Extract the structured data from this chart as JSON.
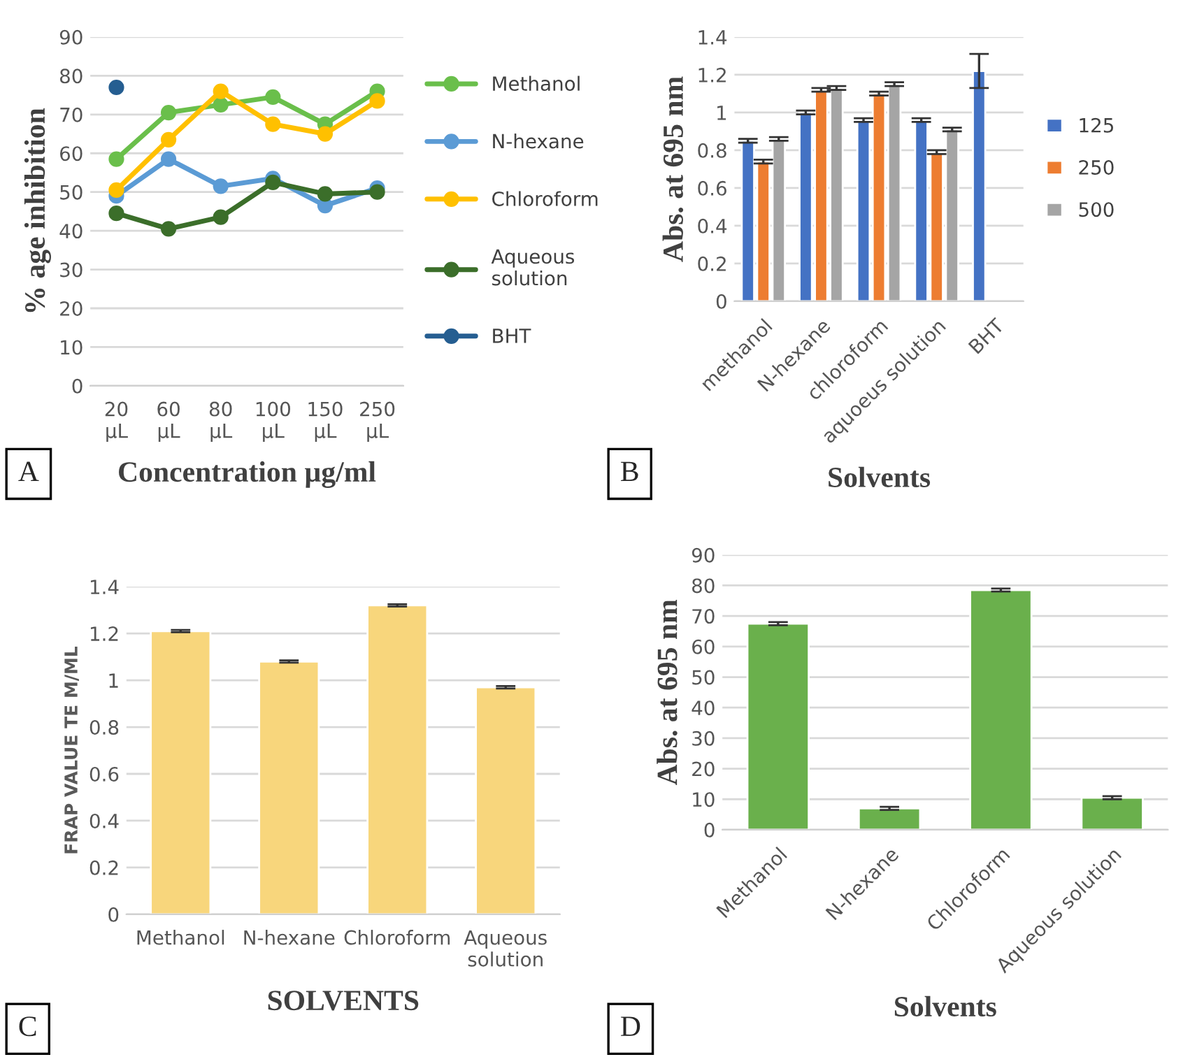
{
  "chart_data": [
    {
      "type": "line",
      "xlabel": "Concentration µg/ml",
      "ylabel": "% age inhibition",
      "categories": [
        "20 µL",
        "60 µL",
        "80 µL",
        "100 µL",
        "150 µL",
        "250 µL"
      ],
      "series": [
        {
          "name": "Methanol",
          "color": "#6abf4b",
          "values": [
            58.5,
            70.5,
            72.5,
            74.5,
            67.5,
            76
          ]
        },
        {
          "name": "N-hexane",
          "color": "#5b9bd5",
          "values": [
            49,
            58.5,
            51.5,
            53.5,
            46.5,
            51
          ]
        },
        {
          "name": "Chloroform",
          "color": "#ffc000",
          "values": [
            50.5,
            63.5,
            76,
            67.5,
            65,
            73.5
          ]
        },
        {
          "name": "Aqueous solution",
          "color": "#3b6e2a",
          "values": [
            44.5,
            40.5,
            43.5,
            52.5,
            49.5,
            50
          ]
        },
        {
          "name": "BHT",
          "color": "#255e91",
          "values": [
            77,
            null,
            null,
            null,
            null,
            null
          ]
        }
      ],
      "ylim": [
        0,
        90
      ],
      "yticks": [
        0,
        10,
        20,
        30,
        40,
        50,
        60,
        70,
        80,
        90
      ],
      "grid": "y",
      "legend": "right",
      "marker": "circle",
      "line_style": "solid",
      "annotations": [
        "A"
      ]
    },
    {
      "type": "bar",
      "xlabel": "Solvents",
      "ylabel": "Abs. at 695 nm",
      "categories": [
        "methanol",
        "N-hexane",
        "chloroform",
        "aquoeus solution",
        "BHT"
      ],
      "series": [
        {
          "name": "125",
          "color": "#4472c4",
          "values": [
            0.85,
            1.0,
            0.96,
            0.96,
            1.22
          ],
          "errors": [
            0.01,
            0.01,
            0.01,
            0.01,
            0.09
          ]
        },
        {
          "name": "250",
          "color": "#ed7d31",
          "values": [
            0.74,
            1.12,
            1.1,
            0.79,
            null
          ],
          "errors": [
            0.01,
            0.01,
            0.01,
            0.01,
            null
          ]
        },
        {
          "name": "500",
          "color": "#a5a5a5",
          "values": [
            0.86,
            1.13,
            1.15,
            0.91,
            null
          ],
          "errors": [
            0.01,
            0.01,
            0.01,
            0.01,
            null
          ]
        }
      ],
      "ylim": [
        0,
        1.4
      ],
      "yticks": [
        0,
        0.2,
        0.4,
        0.6,
        0.8,
        1,
        1.2,
        1.4
      ],
      "grid": "y",
      "legend": "right",
      "annotations": [
        "B"
      ]
    },
    {
      "type": "bar",
      "xlabel": "SOLVENTS",
      "ylabel": "FRAP VALUE TE M/ML",
      "categories": [
        "Methanol",
        "N-hexane",
        "Chloroform",
        "Aqueous solution"
      ],
      "series": [
        {
          "color": "#f8d67c",
          "values": [
            1.21,
            1.08,
            1.32,
            0.97
          ],
          "errors": [
            0.005,
            0.005,
            0.005,
            0.005
          ]
        }
      ],
      "ylim": [
        0,
        1.4
      ],
      "yticks": [
        0,
        0.2,
        0.4,
        0.6,
        0.8,
        1,
        1.2,
        1.4
      ],
      "grid": "y",
      "annotations": [
        "C"
      ]
    },
    {
      "type": "bar",
      "xlabel": "Solvents",
      "ylabel": "Abs. at 695 nm",
      "categories": [
        "Methanol",
        "N-hexane",
        "Chloroform",
        "Aqueous solution"
      ],
      "series": [
        {
          "color": "#6ab04c",
          "values": [
            67.5,
            7,
            78.5,
            10.5
          ],
          "errors": [
            0.5,
            0.5,
            0.5,
            0.5
          ]
        }
      ],
      "ylim": [
        0,
        90
      ],
      "yticks": [
        0,
        10,
        20,
        30,
        40,
        50,
        60,
        70,
        80,
        90
      ],
      "grid": "y",
      "annotations": [
        "D"
      ]
    }
  ]
}
